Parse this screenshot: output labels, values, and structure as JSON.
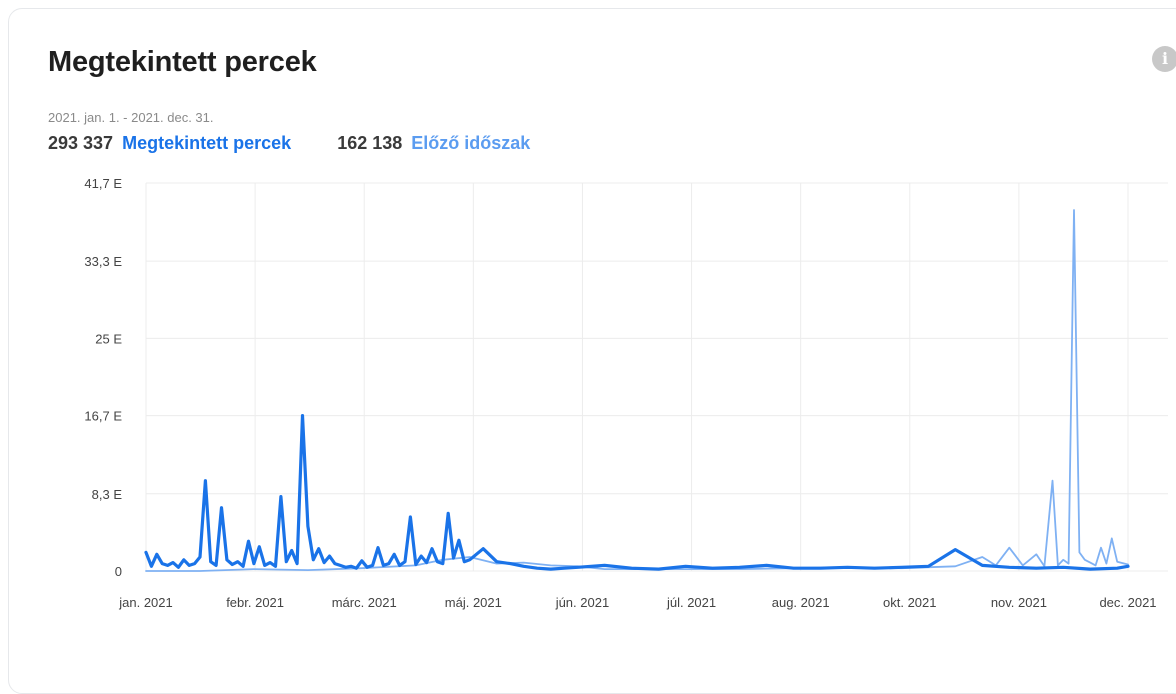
{
  "card": {
    "title": "Megtekintett percek",
    "info_icon": "info-icon",
    "date_range": "2021. jan. 1. - 2021. dec. 31."
  },
  "summary": {
    "current_value": "293 337",
    "current_label": "Megtekintett percek",
    "previous_value": "162 138",
    "previous_label": "Előző időszak"
  },
  "colors": {
    "current": "#1a73e8",
    "previous": "#7fb1f3",
    "grid": "#ececec"
  },
  "chart_data": {
    "type": "line",
    "ylim": [
      0,
      41.7
    ],
    "ytick_values": [
      0,
      8.3,
      16.7,
      25,
      33.3,
      41.7
    ],
    "ytick_labels": [
      "0",
      "8,3 E",
      "16,7 E",
      "25 E",
      "33,3 E",
      "41,7 E"
    ],
    "xtick_labels": [
      "jan. 2021",
      "febr. 2021",
      "márc. 2021",
      "máj. 2021",
      "jún. 2021",
      "júl. 2021",
      "aug. 2021",
      "okt. 2021",
      "nov. 2021",
      "dec. 2021"
    ],
    "x_unit": "day of period (0 = 2021-01-01)",
    "x_range": [
      0,
      364
    ],
    "y_unit": "thousand minutes",
    "grid": true,
    "legend": "none",
    "series": [
      {
        "name": "Megtekintett percek",
        "x": [
          0,
          2,
          4,
          6,
          8,
          10,
          12,
          14,
          16,
          18,
          20,
          22,
          24,
          26,
          28,
          30,
          32,
          34,
          36,
          38,
          40,
          42,
          44,
          46,
          48,
          50,
          52,
          54,
          56,
          58,
          60,
          62,
          64,
          66,
          68,
          70,
          72,
          74,
          76,
          78,
          80,
          82,
          84,
          86,
          88,
          90,
          92,
          94,
          96,
          98,
          100,
          102,
          104,
          106,
          108,
          110,
          112,
          114,
          116,
          118,
          120,
          125,
          130,
          135,
          140,
          145,
          150,
          155,
          160,
          170,
          180,
          190,
          200,
          210,
          220,
          230,
          240,
          250,
          260,
          270,
          280,
          290,
          300,
          310,
          320,
          330,
          340,
          350,
          360,
          364
        ],
        "y": [
          2.0,
          0.5,
          1.8,
          0.8,
          0.6,
          0.9,
          0.4,
          1.2,
          0.6,
          0.8,
          1.5,
          9.7,
          1.0,
          0.6,
          6.8,
          1.2,
          0.7,
          1.0,
          0.5,
          3.2,
          0.8,
          2.6,
          0.6,
          0.9,
          0.5,
          8.0,
          1.0,
          2.2,
          0.8,
          16.7,
          4.8,
          1.2,
          2.4,
          0.9,
          1.6,
          0.8,
          0.6,
          0.4,
          0.5,
          0.3,
          1.1,
          0.4,
          0.6,
          2.5,
          0.6,
          0.8,
          1.8,
          0.6,
          1.0,
          5.8,
          0.7,
          1.6,
          0.9,
          2.4,
          1.0,
          0.8,
          6.2,
          1.4,
          3.3,
          1.0,
          1.2,
          2.4,
          1.0,
          0.8,
          0.5,
          0.3,
          0.2,
          0.3,
          0.4,
          0.6,
          0.3,
          0.2,
          0.5,
          0.3,
          0.4,
          0.6,
          0.3,
          0.3,
          0.4,
          0.3,
          0.4,
          0.5,
          2.3,
          0.6,
          0.4,
          0.3,
          0.4,
          0.2,
          0.3,
          0.5
        ]
      },
      {
        "name": "Előző időszak",
        "x": [
          0,
          20,
          40,
          60,
          80,
          100,
          110,
          120,
          130,
          140,
          150,
          160,
          170,
          180,
          200,
          220,
          240,
          260,
          280,
          300,
          310,
          315,
          320,
          325,
          330,
          333,
          336,
          338,
          340,
          342,
          344,
          346,
          348,
          350,
          352,
          354,
          356,
          358,
          360,
          364
        ],
        "y": [
          0.0,
          0.0,
          0.2,
          0.1,
          0.3,
          0.6,
          1.2,
          1.5,
          0.8,
          0.9,
          0.6,
          0.5,
          0.2,
          0.2,
          0.2,
          0.2,
          0.3,
          0.4,
          0.3,
          0.5,
          1.5,
          0.6,
          2.5,
          0.6,
          1.8,
          0.5,
          9.7,
          0.6,
          1.2,
          0.8,
          38.8,
          2.0,
          1.2,
          0.9,
          0.6,
          2.5,
          0.8,
          3.5,
          1.0,
          0.7
        ]
      }
    ]
  }
}
